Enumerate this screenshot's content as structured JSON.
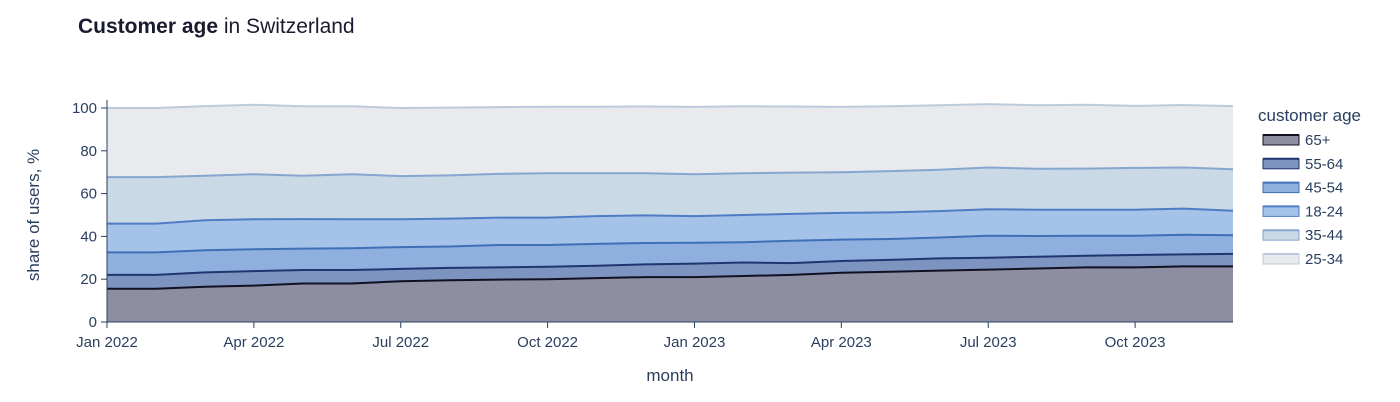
{
  "title": {
    "bold": "Customer age",
    "rest": " in Switzerland"
  },
  "chart_data": {
    "type": "area",
    "stacked": true,
    "xlabel": "month",
    "ylabel": "share of users, %",
    "ylim": [
      0,
      100
    ],
    "yticks": [
      0,
      20,
      40,
      60,
      80,
      100
    ],
    "x": [
      "2022-01",
      "2022-02",
      "2022-03",
      "2022-04",
      "2022-05",
      "2022-06",
      "2022-07",
      "2022-08",
      "2022-09",
      "2022-10",
      "2022-11",
      "2022-12",
      "2023-01",
      "2023-02",
      "2023-03",
      "2023-04",
      "2023-05",
      "2023-06",
      "2023-07",
      "2023-08",
      "2023-09",
      "2023-10",
      "2023-11",
      "2023-12"
    ],
    "xticks": [
      {
        "x": "2022-01",
        "label": "Jan 2022"
      },
      {
        "x": "2022-04",
        "label": "Apr 2022"
      },
      {
        "x": "2022-07",
        "label": "Jul 2022"
      },
      {
        "x": "2022-10",
        "label": "Oct 2022"
      },
      {
        "x": "2023-01",
        "label": "Jan 2023"
      },
      {
        "x": "2023-04",
        "label": "Apr 2023"
      },
      {
        "x": "2023-07",
        "label": "Jul 2023"
      },
      {
        "x": "2023-10",
        "label": "Oct 2023"
      }
    ],
    "legend_title": "customer age",
    "legend_position": "right",
    "series": [
      {
        "name": "65+",
        "fill": "#8e8ea3",
        "line": "#111122",
        "values": [
          15.5,
          15.5,
          16.5,
          17,
          18,
          18,
          19,
          19.5,
          19.8,
          20,
          20.5,
          21,
          21,
          21.5,
          22,
          23,
          23.5,
          24,
          24.5,
          25,
          25.5,
          25.5,
          26,
          26
        ]
      },
      {
        "name": "55-64",
        "fill": "#7d93c0",
        "line": "#1f3670",
        "values": [
          6.5,
          6.5,
          6.7,
          6.8,
          6.3,
          6.3,
          5.8,
          5.8,
          5.7,
          5.8,
          5.8,
          5.9,
          6.3,
          6.3,
          5.5,
          5.5,
          5.5,
          5.7,
          5.5,
          5.5,
          5.5,
          5.8,
          5.6,
          5.8
        ]
      },
      {
        "name": "45-54",
        "fill": "#8fb0de",
        "line": "#3f6fb7",
        "values": [
          10.5,
          10.5,
          10.3,
          10.2,
          10,
          10.2,
          10.2,
          10,
          10.5,
          10.2,
          10.2,
          10,
          9.7,
          9.5,
          10.5,
          10,
          9.8,
          9.8,
          10.3,
          9.7,
          9.3,
          9,
          9.2,
          8.7
        ]
      },
      {
        "name": "18-24",
        "fill": "#a5c3e8",
        "line": "#4f7cc4",
        "values": [
          13.5,
          13.5,
          14,
          14,
          13.8,
          13.5,
          13,
          13,
          12.8,
          12.8,
          13,
          12.9,
          12.5,
          12.7,
          12.5,
          12.5,
          12.4,
          12.3,
          12.4,
          12.3,
          12.2,
          12.2,
          12.2,
          11.5
        ]
      },
      {
        "name": "35-44",
        "fill": "#c9dae6",
        "line": "#86a6cf",
        "values": [
          21.7,
          21.7,
          20.8,
          21,
          20.2,
          21,
          20.2,
          20.2,
          20.4,
          20.7,
          20,
          19.7,
          19.5,
          19.5,
          19.3,
          19,
          19.3,
          19.3,
          19.5,
          19.1,
          19.2,
          19.5,
          19.2,
          19.4
        ]
      },
      {
        "name": "25-34",
        "fill": "#e8eaed",
        "line": "#bccbdb",
        "values": [
          32.3,
          32.3,
          32.6,
          32.5,
          32.5,
          31.8,
          31.8,
          31.7,
          31.2,
          31.1,
          31.1,
          31.2,
          31.5,
          31.3,
          30.9,
          30.5,
          30.3,
          30.2,
          29.6,
          29.7,
          29.8,
          29.0,
          29.2,
          29.5
        ]
      }
    ],
    "legend_order": [
      "65+",
      "55-64",
      "45-54",
      "18-24",
      "35-44",
      "25-34"
    ]
  }
}
